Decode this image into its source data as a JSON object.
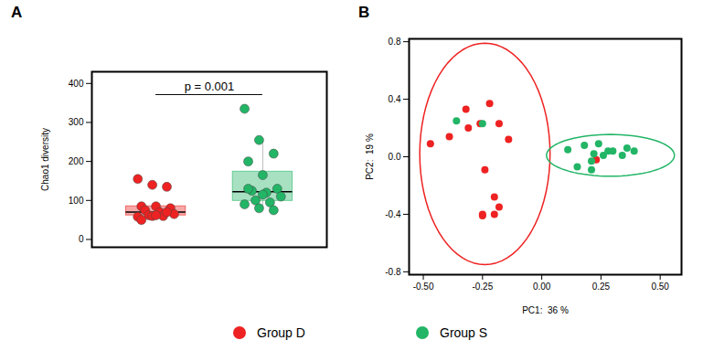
{
  "chart_data": [
    {
      "type": "box",
      "title": "A",
      "ylabel": "Chao1 diversity",
      "ylim": [
        -20,
        430
      ],
      "yticks": [
        0,
        100,
        200,
        300,
        400
      ],
      "tick_labels": "y",
      "annotations": [
        {
          "text": "p = 0.001"
        }
      ],
      "series": [
        {
          "name": "Group D",
          "color": "#ee2222",
          "values": [
            155,
            140,
            135,
            85,
            85,
            80,
            75,
            70,
            65,
            62,
            60,
            58,
            60,
            70,
            50,
            62
          ]
        },
        {
          "name": "Group S",
          "color": "#22b566",
          "values": [
            335,
            255,
            220,
            200,
            165,
            130,
            125,
            120,
            110,
            100,
            95,
            90,
            80,
            75,
            130,
            115
          ]
        }
      ]
    },
    {
      "type": "scatter",
      "title": "B",
      "xlabel": "PC1:  36 %",
      "ylabel": "PC2:  19 %",
      "xlim": [
        -0.56,
        0.59
      ],
      "ylim": [
        -0.82,
        0.82
      ],
      "xticks": [
        {
          "value": -0.5,
          "label": "-0.50"
        },
        {
          "value": -0.25,
          "label": "-0.25"
        },
        {
          "value": 0,
          "label": "0.00"
        },
        {
          "value": 0.25,
          "label": "0.25"
        },
        {
          "value": 0.5,
          "label": "0.50"
        }
      ],
      "yticks": [
        -0.8,
        -0.4,
        {
          "value": 0,
          "label": "0.0"
        },
        0.4,
        0.8
      ],
      "legend": "bottom",
      "series": [
        {
          "name": "Group D",
          "color": "#ee2222",
          "x": [
            -0.47,
            -0.32,
            -0.39,
            -0.31,
            -0.26,
            -0.22,
            -0.18,
            -0.14,
            -0.24,
            -0.2,
            -0.25,
            -0.25,
            -0.2,
            -0.18,
            0.23
          ],
          "y": [
            0.09,
            0.33,
            0.14,
            0.2,
            0.23,
            0.37,
            0.23,
            0.12,
            -0.09,
            -0.28,
            -0.4,
            -0.41,
            -0.4,
            -0.35,
            -0.02
          ],
          "ellipse": {
            "cx": -0.24,
            "cy": 0.02,
            "rx": 0.275,
            "ry": 0.77
          }
        },
        {
          "name": "Group S",
          "color": "#22b566",
          "x": [
            -0.36,
            -0.25,
            0.11,
            0.18,
            0.24,
            0.28,
            0.22,
            0.21,
            0.26,
            0.3,
            0.36,
            0.39,
            0.34,
            0.15,
            0.21
          ],
          "y": [
            0.25,
            0.23,
            0.05,
            0.08,
            0.09,
            0.04,
            0.02,
            -0.03,
            0.01,
            0.04,
            0.06,
            0.04,
            0.01,
            -0.07,
            -0.09
          ],
          "ellipse": {
            "cx": 0.29,
            "cy": 0.01,
            "rx": 0.27,
            "ry": 0.145
          }
        }
      ]
    }
  ]
}
